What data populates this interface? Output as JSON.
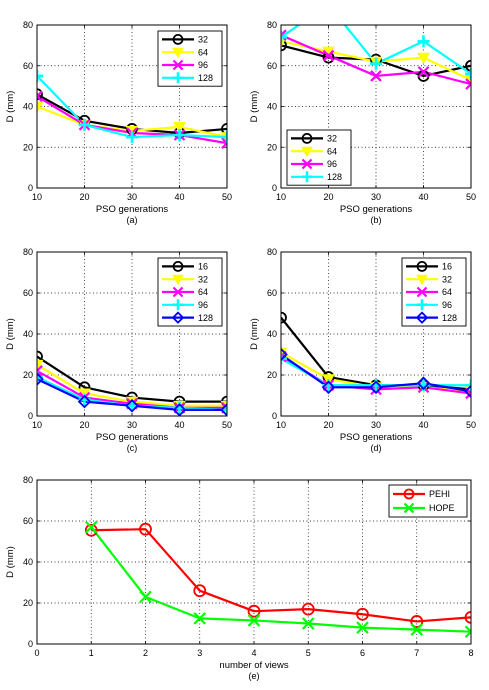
{
  "colors": {
    "black": "#000000",
    "yellow": "#ffff00",
    "magenta": "#ff00ff",
    "cyan": "#00ffff",
    "blue": "#0000ff",
    "red": "#ff0000",
    "green": "#00ff00",
    "grid": "#000000"
  },
  "chart_data": [
    {
      "id": "a",
      "type": "line",
      "caption": "(a)",
      "xlabel": "PSO generations",
      "ylabel": "D (mm)",
      "x": [
        10,
        20,
        30,
        40,
        50
      ],
      "xlim": [
        10,
        50
      ],
      "ylim": [
        0,
        80
      ],
      "xticks": [
        10,
        20,
        30,
        40,
        50
      ],
      "yticks": [
        0,
        20,
        40,
        60,
        80
      ],
      "grid": true,
      "legend": "top-right",
      "series": [
        {
          "name": "32",
          "color": "#000000",
          "marker": "circle",
          "values": [
            46,
            33,
            29,
            27,
            29
          ]
        },
        {
          "name": "64",
          "color": "#ffff00",
          "marker": "triangle-down",
          "values": [
            40,
            31,
            28,
            30,
            25
          ]
        },
        {
          "name": "96",
          "color": "#ff00ff",
          "marker": "x",
          "values": [
            45,
            31,
            27,
            26,
            22
          ]
        },
        {
          "name": "128",
          "color": "#00ffff",
          "marker": "plus",
          "values": [
            55,
            31,
            25,
            26,
            25
          ]
        }
      ]
    },
    {
      "id": "b",
      "type": "line",
      "caption": "(b)",
      "xlabel": "PSO generations",
      "ylabel": "D (mm)",
      "x": [
        10,
        20,
        30,
        40,
        50
      ],
      "xlim": [
        10,
        50
      ],
      "ylim": [
        0,
        80
      ],
      "xticks": [
        10,
        20,
        30,
        40,
        50
      ],
      "yticks": [
        0,
        20,
        40,
        60,
        80
      ],
      "grid": true,
      "legend": "bottom-left",
      "series": [
        {
          "name": "32",
          "color": "#000000",
          "marker": "circle",
          "values": [
            70,
            64,
            63,
            55,
            60
          ]
        },
        {
          "name": "64",
          "color": "#ffff00",
          "marker": "triangle-down",
          "values": [
            72,
            67,
            62,
            64,
            53
          ]
        },
        {
          "name": "96",
          "color": "#ff00ff",
          "marker": "x",
          "values": [
            75,
            65,
            55,
            57,
            51
          ]
        },
        {
          "name": "128",
          "color": "#00ffff",
          "marker": "plus",
          "values": [
            74,
            90,
            61,
            72,
            56
          ]
        }
      ]
    },
    {
      "id": "c",
      "type": "line",
      "caption": "(c)",
      "xlabel": "PSO generations",
      "ylabel": "D (mm)",
      "x": [
        10,
        20,
        30,
        40,
        50
      ],
      "xlim": [
        10,
        50
      ],
      "ylim": [
        0,
        80
      ],
      "xticks": [
        10,
        20,
        30,
        40,
        50
      ],
      "yticks": [
        0,
        20,
        40,
        60,
        80
      ],
      "grid": true,
      "legend": "top-right",
      "series": [
        {
          "name": "16",
          "color": "#000000",
          "marker": "circle",
          "values": [
            29,
            14,
            9,
            7,
            7
          ]
        },
        {
          "name": "32",
          "color": "#ffff00",
          "marker": "triangle-down",
          "values": [
            25,
            11,
            7,
            5,
            5
          ]
        },
        {
          "name": "64",
          "color": "#ff00ff",
          "marker": "x",
          "values": [
            22,
            9,
            6,
            4,
            4
          ]
        },
        {
          "name": "96",
          "color": "#00ffff",
          "marker": "plus",
          "values": [
            19,
            8,
            5,
            4,
            3
          ]
        },
        {
          "name": "128",
          "color": "#0000ff",
          "marker": "diamond",
          "values": [
            18,
            7,
            5,
            3,
            3
          ]
        }
      ]
    },
    {
      "id": "d",
      "type": "line",
      "caption": "(d)",
      "xlabel": "PSO generations",
      "ylabel": "D (mm)",
      "x": [
        10,
        20,
        30,
        40,
        50
      ],
      "xlim": [
        10,
        50
      ],
      "ylim": [
        0,
        80
      ],
      "xticks": [
        10,
        20,
        30,
        40,
        50
      ],
      "yticks": [
        0,
        20,
        40,
        60,
        80
      ],
      "grid": true,
      "legend": "top-right",
      "series": [
        {
          "name": "16",
          "color": "#000000",
          "marker": "circle",
          "values": [
            48,
            19,
            15,
            15,
            13
          ]
        },
        {
          "name": "32",
          "color": "#ffff00",
          "marker": "triangle-down",
          "values": [
            31,
            18,
            14,
            14,
            12
          ]
        },
        {
          "name": "64",
          "color": "#ff00ff",
          "marker": "x",
          "values": [
            29,
            15,
            13,
            14,
            11
          ]
        },
        {
          "name": "96",
          "color": "#00ffff",
          "marker": "plus",
          "values": [
            28,
            15,
            15,
            15,
            15
          ]
        },
        {
          "name": "128",
          "color": "#0000ff",
          "marker": "diamond",
          "values": [
            30,
            14,
            14,
            16,
            12
          ]
        }
      ]
    },
    {
      "id": "e",
      "type": "line",
      "caption": "(e)",
      "xlabel": "number of views",
      "ylabel": "D (mm)",
      "x": [
        1,
        2,
        3,
        4,
        5,
        6,
        7,
        8
      ],
      "xlim": [
        0,
        8
      ],
      "ylim": [
        0,
        80
      ],
      "xticks": [
        0,
        1,
        2,
        3,
        4,
        5,
        6,
        7,
        8
      ],
      "yticks": [
        0,
        20,
        40,
        60,
        80
      ],
      "grid": true,
      "legend": "top-right",
      "series": [
        {
          "name": "PEHI",
          "color": "#ff0000",
          "marker": "circle",
          "values": [
            55.5,
            56,
            26,
            16,
            17,
            14.5,
            11,
            13
          ]
        },
        {
          "name": "HOPE",
          "color": "#00ff00",
          "marker": "x",
          "values": [
            57,
            23,
            12.5,
            11.5,
            10,
            8,
            7,
            6
          ]
        }
      ]
    }
  ]
}
